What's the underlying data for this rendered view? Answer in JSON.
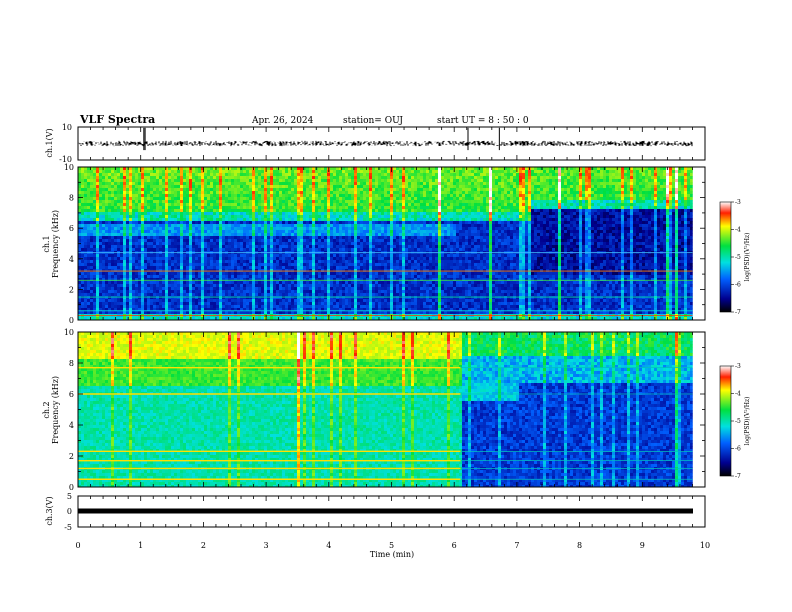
{
  "header": {
    "title": "VLF Spectra",
    "date": "Apr. 26, 2024",
    "station": "station= OUJ",
    "start": "start  UT =  8 : 50 : 0"
  },
  "chart_data": [
    {
      "type": "line",
      "panel": "waveform-ch1",
      "ylabel": "ch.1(V)",
      "ylim": [
        -10,
        10
      ],
      "yticks": [
        "10",
        "-10"
      ],
      "xlim": [
        0,
        10
      ],
      "data_end_min": 9.8,
      "level": 0.0,
      "spikes_min": [
        1.05,
        1.07,
        6.22,
        6.72
      ]
    },
    {
      "type": "heatmap",
      "panel": "spectrogram-ch1",
      "ylabel": "ch.1\nFrequency (kHz)",
      "ylim": [
        0,
        10
      ],
      "yticks": [
        "0",
        "2",
        "4",
        "6",
        "8",
        "10"
      ],
      "xlim": [
        0,
        10
      ],
      "data_end_min": 9.8,
      "colorbar": {
        "label": "log(PSD)(V²/Hz)",
        "range": [
          -7,
          -3
        ],
        "ticks": [
          "-3",
          "-4",
          "-5",
          "-6",
          "-7"
        ]
      },
      "noise_floor_kHz_before_7.2min": 6.5,
      "noise_floor_kHz_after_7.2min": 7.2
    },
    {
      "type": "heatmap",
      "panel": "spectrogram-ch2",
      "ylabel": "ch.2\nFrequency (kHz)",
      "ylim": [
        0,
        10
      ],
      "yticks": [
        "0",
        "2",
        "4",
        "6",
        "8",
        "10"
      ],
      "xlim": [
        0,
        10
      ],
      "data_end_min": 9.8,
      "colorbar": {
        "label": "log(PSD)(V²/Hz)",
        "range": [
          -7,
          -3
        ],
        "ticks": [
          "-3",
          "-4",
          "-5",
          "-6",
          "-7"
        ]
      },
      "level_change_min": 6.1,
      "bands_kHz": [
        7.7,
        6.0,
        2.3,
        1.7,
        1.2,
        0.5
      ]
    },
    {
      "type": "line",
      "panel": "waveform-ch3",
      "ylabel": "ch.3(V)",
      "ylim": [
        -5,
        5
      ],
      "yticks": [
        "5",
        "0",
        "-5"
      ],
      "xlim": [
        0,
        10
      ],
      "xticks": [
        "0",
        "1",
        "2",
        "3",
        "4",
        "5",
        "6",
        "7",
        "8",
        "9",
        "10"
      ],
      "xlabel": "Time (min)",
      "data_end_min": 9.8,
      "level": 0.0
    }
  ]
}
